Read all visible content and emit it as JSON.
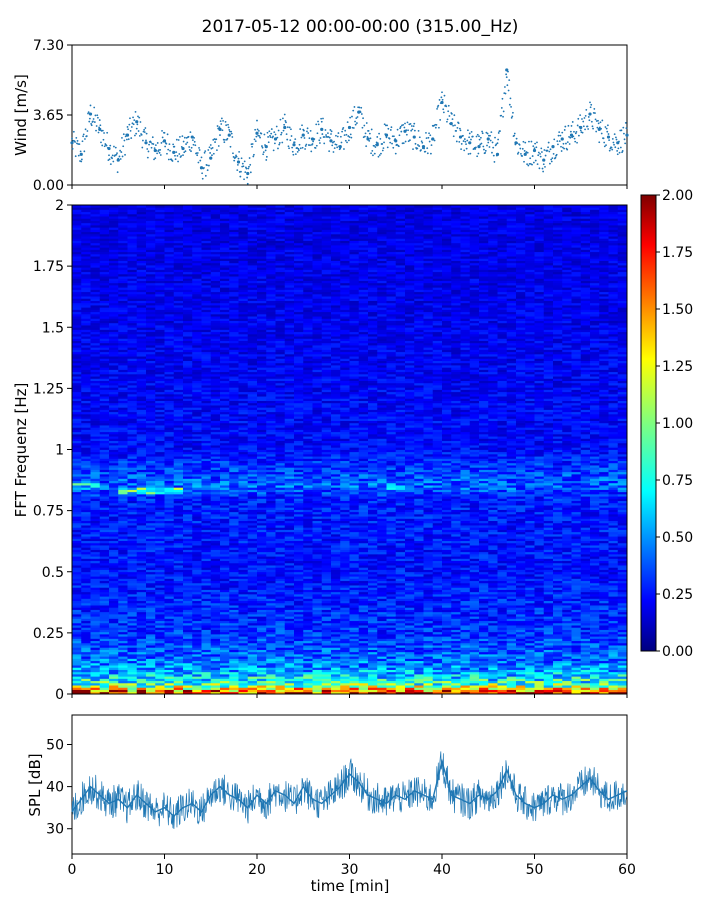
{
  "figure": {
    "title": "2017-05-12 00:00-00:00 (315.00_Hz)"
  },
  "chart_data": [
    {
      "id": "wind",
      "type": "scatter",
      "ylabel": "Wind [m/s]",
      "xlim": [
        0,
        60
      ],
      "ylim": [
        0,
        7.3
      ],
      "yticks": [
        "0.00",
        "3.65",
        "7.30"
      ],
      "xticks": [
        0,
        10,
        20,
        30,
        40,
        50,
        60
      ],
      "color": "#1f77b4",
      "series": [
        {
          "x": [
            0,
            1,
            2,
            3,
            4,
            5,
            6,
            7,
            8,
            9,
            10,
            11,
            12,
            13,
            14,
            15,
            16,
            17,
            18,
            19,
            20,
            21,
            22,
            23,
            24,
            25,
            26,
            27,
            28,
            29,
            30,
            31,
            32,
            33,
            34,
            35,
            36,
            37,
            38,
            39,
            40,
            41,
            42,
            43,
            44,
            45,
            46,
            47,
            48,
            49,
            50,
            51,
            52,
            53,
            54,
            55,
            56,
            57,
            58,
            59,
            60
          ],
          "values": [
            2.2,
            1.6,
            3.7,
            2.9,
            1.9,
            1.3,
            2.6,
            3.3,
            2.2,
            1.8,
            2.3,
            1.7,
            1.9,
            2.5,
            0.9,
            1.4,
            2.9,
            2.6,
            1.2,
            0.6,
            2.7,
            2.0,
            2.4,
            3.0,
            2.1,
            2.6,
            2.4,
            2.9,
            2.3,
            2.0,
            3.0,
            3.8,
            2.4,
            2.1,
            2.6,
            2.3,
            2.8,
            2.5,
            2.0,
            2.4,
            4.3,
            3.2,
            2.5,
            2.2,
            2.0,
            2.4,
            1.6,
            6.0,
            2.2,
            1.6,
            1.8,
            1.3,
            2.0,
            2.4,
            2.6,
            3.0,
            3.7,
            2.9,
            2.5,
            2.2,
            2.6
          ]
        }
      ]
    },
    {
      "id": "spectrogram",
      "type": "heatmap",
      "ylabel": "FFT Frequenz [Hz]",
      "xlim": [
        0,
        60
      ],
      "ylim": [
        0,
        2
      ],
      "yticks": [
        "0",
        "0.25",
        "0.5",
        "0.75",
        "1",
        "1.25",
        "1.5",
        "1.75",
        "2"
      ],
      "colorscale": "jet",
      "colorbar": {
        "range": [
          0,
          2
        ],
        "ticks": [
          "0.00",
          "0.25",
          "0.50",
          "0.75",
          "1.00",
          "1.25",
          "1.50",
          "1.75",
          "2.00"
        ]
      },
      "frequency_profile": {
        "freq_hz": [
          0.0,
          0.02,
          0.05,
          0.1,
          0.15,
          0.25,
          0.5,
          0.8,
          0.85,
          1.0,
          1.5,
          2.0
        ],
        "mean_level": [
          1.8,
          1.2,
          0.8,
          0.55,
          0.45,
          0.35,
          0.28,
          0.3,
          0.45,
          0.26,
          0.22,
          0.2
        ]
      },
      "features": [
        {
          "freq_hz": 0.83,
          "x_range": [
            5,
            12
          ],
          "level": 0.8
        },
        {
          "freq_hz": 0.85,
          "x_range": [
            0,
            3
          ],
          "level": 0.7
        },
        {
          "freq_hz": 0.85,
          "x_range": [
            33,
            36
          ],
          "level": 0.55
        }
      ]
    },
    {
      "id": "spl",
      "type": "line",
      "ylabel": "SPL [dB]",
      "xlabel": "time [min]",
      "xlim": [
        0,
        60
      ],
      "ylim": [
        24,
        57
      ],
      "yticks": [
        "30",
        "40",
        "50"
      ],
      "xticks": [
        "0",
        "10",
        "20",
        "30",
        "40",
        "50",
        "60"
      ],
      "color": "#1f77b4",
      "series": [
        {
          "x": [
            0,
            1,
            2,
            3,
            4,
            5,
            6,
            7,
            8,
            9,
            10,
            11,
            12,
            13,
            14,
            15,
            16,
            17,
            18,
            19,
            20,
            21,
            22,
            23,
            24,
            25,
            26,
            27,
            28,
            29,
            30,
            31,
            32,
            33,
            34,
            35,
            36,
            37,
            38,
            39,
            40,
            41,
            42,
            43,
            44,
            45,
            46,
            47,
            48,
            49,
            50,
            51,
            52,
            53,
            54,
            55,
            56,
            57,
            58,
            59,
            60
          ],
          "values": [
            34,
            37,
            40,
            38,
            36,
            37,
            35,
            38,
            36,
            34,
            35,
            33,
            35,
            36,
            34,
            38,
            40,
            38,
            37,
            35,
            38,
            36,
            39,
            38,
            36,
            40,
            37,
            36,
            38,
            40,
            43,
            41,
            38,
            37,
            36,
            38,
            37,
            39,
            38,
            37,
            46,
            38,
            37,
            36,
            38,
            37,
            39,
            44,
            38,
            36,
            35,
            36,
            38,
            37,
            38,
            40,
            42,
            39,
            37,
            38,
            39
          ]
        }
      ]
    }
  ]
}
